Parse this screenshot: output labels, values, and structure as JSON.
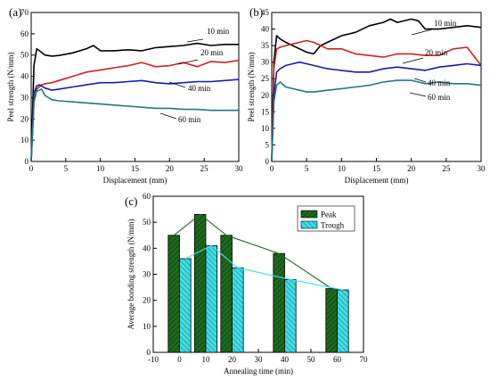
{
  "chart_data": [
    {
      "panel": "(a)",
      "type": "line",
      "xlabel": "Displacement (mm)",
      "ylabel": "Peel strength (N/mm)",
      "xlim": [
        0,
        30
      ],
      "ylim": [
        0,
        70
      ],
      "xticks": [
        0,
        5,
        10,
        15,
        20,
        25,
        30
      ],
      "yticks": [
        0,
        10,
        20,
        30,
        40,
        50,
        60,
        70
      ],
      "series": [
        {
          "name": "10 min",
          "color": "#000000",
          "x": [
            0,
            0.4,
            0.8,
            1.2,
            2,
            3,
            4,
            6,
            8,
            9,
            10,
            12,
            14,
            16,
            18,
            20,
            22,
            24,
            26,
            28,
            30
          ],
          "y": [
            0,
            45,
            53,
            52,
            50,
            49.5,
            49.8,
            51,
            53,
            54.5,
            52,
            52,
            52.5,
            52,
            53.5,
            54,
            54.5,
            55.5,
            54.5,
            55,
            55
          ]
        },
        {
          "name": "20 min",
          "color": "#cc2222",
          "x": [
            0,
            0.4,
            0.8,
            1.5,
            2,
            3,
            4,
            6,
            8,
            10,
            12,
            14,
            16,
            18,
            20,
            22,
            24,
            26,
            28,
            30
          ],
          "y": [
            0,
            28,
            34,
            36,
            36.5,
            37,
            38,
            40,
            42,
            43,
            44,
            45,
            46.5,
            44.5,
            45,
            46.5,
            44.5,
            47,
            46.5,
            47.5
          ]
        },
        {
          "name": "40 min",
          "color": "#1a1aa8",
          "x": [
            0,
            0.4,
            0.8,
            1.2,
            2,
            3,
            4,
            6,
            8,
            10,
            12,
            14,
            16,
            18,
            20,
            22,
            24,
            26,
            28,
            30
          ],
          "y": [
            0,
            32,
            35.5,
            36,
            34.5,
            33.5,
            34,
            35,
            36,
            37,
            37,
            37.5,
            38,
            37,
            36.5,
            37,
            37.5,
            37.5,
            38,
            38.5
          ]
        },
        {
          "name": "60 min",
          "color": "#207a7a",
          "x": [
            0,
            0.4,
            0.8,
            1.5,
            2,
            3,
            4,
            6,
            8,
            10,
            12,
            14,
            16,
            18,
            20,
            22,
            24,
            26,
            28,
            30
          ],
          "y": [
            0,
            28,
            33,
            34,
            31,
            29,
            28.5,
            28,
            27.5,
            27,
            26.5,
            26,
            25.5,
            25,
            25,
            24.5,
            24.5,
            24,
            24,
            24
          ]
        }
      ],
      "labels": [
        "10 min",
        "20 min",
        "40 min",
        "60 min"
      ]
    },
    {
      "panel": "(b)",
      "type": "line",
      "xlabel": "Displacement (mm)",
      "ylabel": "Peel strength (N/mm)",
      "xlim": [
        0,
        30
      ],
      "ylim": [
        0,
        45
      ],
      "xticks": [
        0,
        5,
        10,
        15,
        20,
        25,
        30
      ],
      "yticks": [
        0,
        5,
        10,
        15,
        20,
        25,
        30,
        35,
        40,
        45
      ],
      "series": [
        {
          "name": "10 min",
          "color": "#000000",
          "x": [
            0,
            0.3,
            0.7,
            1.2,
            2,
            3,
            4,
            5,
            6,
            7,
            8,
            10,
            12,
            14,
            16,
            17,
            18,
            20,
            21,
            22,
            24,
            26,
            28,
            30
          ],
          "y": [
            0,
            30,
            38,
            37,
            36,
            35,
            34,
            33,
            32.5,
            35,
            36,
            38,
            39,
            41,
            42,
            43,
            42,
            43,
            42.5,
            40,
            40,
            40.5,
            41,
            40.5
          ]
        },
        {
          "name": "20 min",
          "color": "#cc2222",
          "x": [
            0,
            0.3,
            0.7,
            1.2,
            2,
            3,
            4,
            5,
            6,
            8,
            10,
            12,
            14,
            16,
            18,
            20,
            22,
            24,
            26,
            28,
            30
          ],
          "y": [
            0,
            28,
            34,
            34.5,
            35,
            35.5,
            36,
            36.5,
            36,
            34,
            34,
            32.5,
            32,
            31.5,
            32.5,
            32.5,
            32,
            32,
            34,
            34.5,
            29
          ]
        },
        {
          "name": "40 min",
          "color": "#1a1aa8",
          "x": [
            0,
            0.3,
            0.7,
            1.2,
            2,
            3,
            4,
            5,
            6,
            8,
            10,
            12,
            14,
            16,
            18,
            20,
            22,
            24,
            26,
            28,
            30
          ],
          "y": [
            0,
            20,
            27,
            28,
            29,
            29.5,
            30,
            29.5,
            29,
            28,
            27.5,
            27,
            27,
            28,
            28.5,
            28,
            27.5,
            28.5,
            29,
            29.5,
            29
          ]
        },
        {
          "name": "60 min",
          "color": "#207a7a",
          "x": [
            0,
            0.3,
            0.7,
            1.2,
            2,
            3,
            4,
            5,
            6,
            8,
            10,
            12,
            14,
            16,
            18,
            20,
            22,
            24,
            26,
            28,
            30
          ],
          "y": [
            0,
            18,
            23,
            24,
            22.5,
            22,
            21.5,
            21,
            21,
            21.5,
            22,
            22.5,
            23,
            24,
            24.5,
            24.5,
            23.5,
            24,
            23.5,
            23.5,
            23
          ]
        }
      ],
      "labels": [
        "10 min",
        "20 min",
        "40 min",
        "60 min"
      ]
    },
    {
      "panel": "(c)",
      "type": "bar",
      "xlabel": "Annealing time (min)",
      "ylabel": "Average bonding strength (N/mm)",
      "xlim": [
        -10,
        70
      ],
      "ylim": [
        0,
        60
      ],
      "xticks": [
        -10,
        0,
        10,
        20,
        30,
        40,
        50,
        60,
        70
      ],
      "yticks": [
        0,
        10,
        20,
        30,
        40,
        50,
        60
      ],
      "categories": [
        0,
        10,
        20,
        40,
        60
      ],
      "series": [
        {
          "name": "Peak",
          "color": "#1e6b1e",
          "values": [
            45,
            53,
            45,
            38,
            24.5
          ]
        },
        {
          "name": "Trough",
          "color": "#40e0e8",
          "values": [
            36,
            41,
            32.5,
            28,
            24
          ]
        }
      ],
      "legend": "top-right"
    }
  ]
}
